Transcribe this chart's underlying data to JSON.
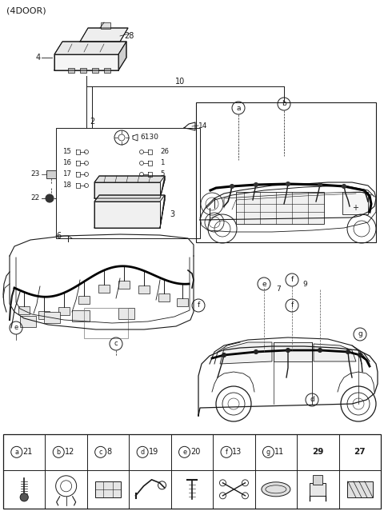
{
  "title": "(4DOOR)",
  "background_color": "#ffffff",
  "line_color": "#1a1a1a",
  "fig_width": 4.8,
  "fig_height": 6.39,
  "dpi": 100,
  "table_cols": [
    {
      "label": "a",
      "num": "21",
      "circle": true
    },
    {
      "label": "b",
      "num": "12",
      "circle": true
    },
    {
      "label": "c",
      "num": "8",
      "circle": true
    },
    {
      "label": "d",
      "num": "19",
      "circle": true
    },
    {
      "label": "e",
      "num": "20",
      "circle": true
    },
    {
      "label": "f",
      "num": "13",
      "circle": true
    },
    {
      "label": "g",
      "num": "11",
      "circle": true
    },
    {
      "label": "",
      "num": "29",
      "circle": false
    },
    {
      "label": "",
      "num": "27",
      "circle": false
    }
  ]
}
